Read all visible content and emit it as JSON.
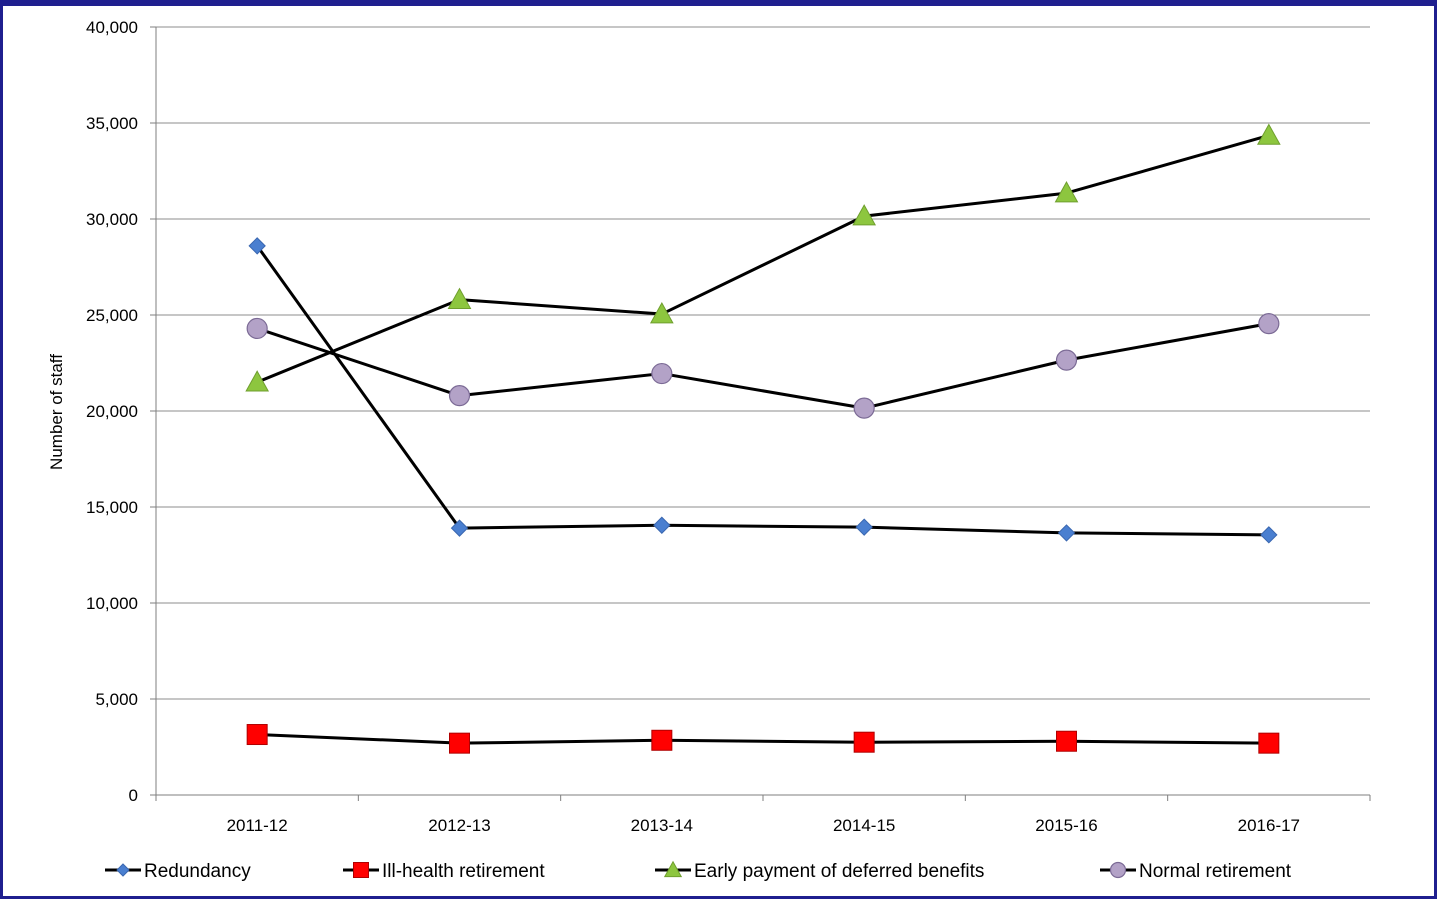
{
  "chart_data": {
    "type": "line",
    "categories": [
      "2011-12",
      "2012-13",
      "2013-14",
      "2014-15",
      "2015-16",
      "2016-17"
    ],
    "ylabel": "Number of staff",
    "xlabel": "",
    "ylim": [
      0,
      40000
    ],
    "yticks": [
      0,
      5000,
      10000,
      15000,
      20000,
      25000,
      30000,
      35000,
      40000
    ],
    "ytick_labels": [
      "0",
      "5,000",
      "10,000",
      "15,000",
      "20,000",
      "25,000",
      "30,000",
      "35,000",
      "40,000"
    ],
    "grid": true,
    "legend_position": "bottom",
    "line_color": "#000000",
    "series": [
      {
        "name": "Redundancy",
        "marker": "diamond",
        "color": "#4a7fd0",
        "values": [
          28600,
          13900,
          14050,
          13950,
          13650,
          13550
        ]
      },
      {
        "name": "Ill-health retirement",
        "marker": "square",
        "color": "#ff0000",
        "values": [
          3150,
          2700,
          2850,
          2750,
          2800,
          2700
        ]
      },
      {
        "name": "Early payment of deferred benefits",
        "marker": "triangle",
        "color": "#8dc63f",
        "values": [
          21500,
          25800,
          25050,
          30150,
          31350,
          34350
        ]
      },
      {
        "name": "Normal retirement",
        "marker": "circle",
        "color": "#b3a2c7",
        "values": [
          24300,
          20800,
          21950,
          20150,
          22650,
          24550
        ]
      }
    ]
  }
}
